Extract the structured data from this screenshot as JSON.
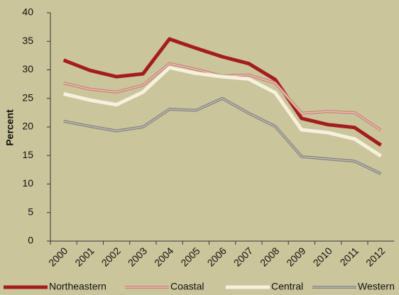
{
  "chart_data": {
    "type": "line",
    "y_label": "Percent",
    "categories": [
      "2000",
      "2001",
      "2002",
      "2003",
      "2004",
      "2005",
      "2006",
      "2007",
      "2008",
      "2009",
      "2010",
      "2011",
      "2012"
    ],
    "ylim": [
      0,
      40
    ],
    "yticks": [
      0,
      5,
      10,
      15,
      20,
      25,
      30,
      35,
      40
    ],
    "series": [
      {
        "name": "Northeastern",
        "color": "#a31d1d",
        "values": [
          31.7,
          29.9,
          28.8,
          29.3,
          35.4,
          33.8,
          32.3,
          31.1,
          28.3,
          21.5,
          20.4,
          19.9,
          16.8
        ]
      },
      {
        "name": "Coastal",
        "color": "#c98074",
        "values": [
          27.7,
          26.6,
          26.1,
          27.3,
          31.1,
          30.1,
          28.9,
          29.1,
          27.7,
          22.4,
          22.7,
          22.5,
          19.4
        ]
      },
      {
        "name": "Central",
        "color": "#f6f1dc",
        "values": [
          25.8,
          24.7,
          23.9,
          26.1,
          30.4,
          29.4,
          28.8,
          28.4,
          26.0,
          19.5,
          19.0,
          17.9,
          14.9
        ]
      },
      {
        "name": "Western",
        "color": "#858380",
        "values": [
          21.0,
          20.1,
          19.3,
          20.0,
          23.1,
          22.9,
          25.0,
          22.4,
          20.1,
          14.8,
          14.4,
          14.0,
          11.8
        ]
      }
    ]
  }
}
